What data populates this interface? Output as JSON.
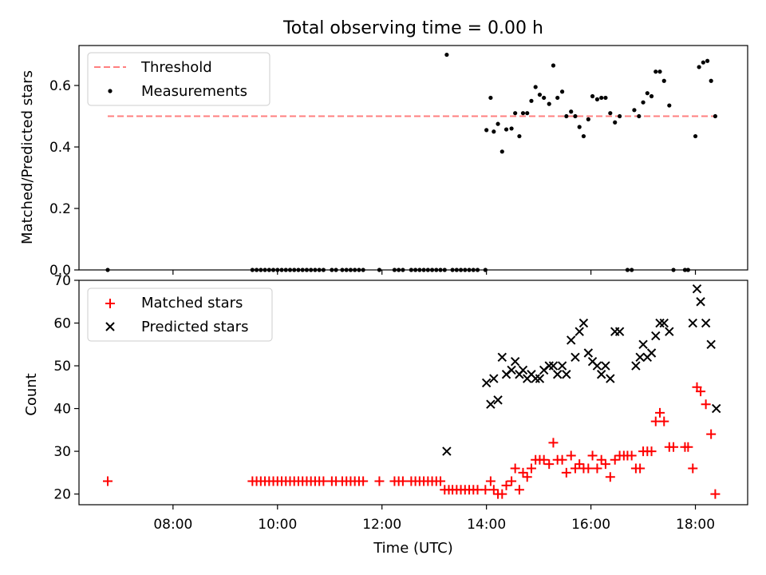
{
  "chart_data": [
    {
      "type": "scatter",
      "title": "Total observing time = 0.00 h",
      "xlabel": "",
      "ylabel": "Matched/Predicted stars",
      "x_unit": "hours (UTC)",
      "xlim": [
        6.2,
        19.0
      ],
      "ylim": [
        0.0,
        0.73
      ],
      "yticks": [
        0.0,
        0.2,
        0.4,
        0.6
      ],
      "ytick_labels": [
        "0.0",
        "0.2",
        "0.4",
        "0.6"
      ],
      "grid": false,
      "legend_position": "upper-left",
      "legend": [
        "Threshold",
        "Measurements"
      ],
      "threshold": {
        "name": "Threshold",
        "x_range": [
          6.75,
          18.4
        ],
        "value": 0.5,
        "color": "#ff7f7f",
        "style": "dashed"
      },
      "series": [
        {
          "name": "Measurements",
          "color": "#000000",
          "marker": "dot",
          "points": [
            [
              6.75,
              0.0
            ],
            [
              9.52,
              0.0
            ],
            [
              9.6,
              0.0
            ],
            [
              9.68,
              0.0
            ],
            [
              9.76,
              0.0
            ],
            [
              9.84,
              0.0
            ],
            [
              9.92,
              0.0
            ],
            [
              10.0,
              0.0
            ],
            [
              10.08,
              0.0
            ],
            [
              10.16,
              0.0
            ],
            [
              10.24,
              0.0
            ],
            [
              10.32,
              0.0
            ],
            [
              10.4,
              0.0
            ],
            [
              10.48,
              0.0
            ],
            [
              10.56,
              0.0
            ],
            [
              10.64,
              0.0
            ],
            [
              10.72,
              0.0
            ],
            [
              10.8,
              0.0
            ],
            [
              10.88,
              0.0
            ],
            [
              11.04,
              0.0
            ],
            [
              11.12,
              0.0
            ],
            [
              11.24,
              0.0
            ],
            [
              11.32,
              0.0
            ],
            [
              11.4,
              0.0
            ],
            [
              11.48,
              0.0
            ],
            [
              11.56,
              0.0
            ],
            [
              11.64,
              0.0
            ],
            [
              11.95,
              0.0
            ],
            [
              12.24,
              0.0
            ],
            [
              12.32,
              0.0
            ],
            [
              12.4,
              0.0
            ],
            [
              12.56,
              0.0
            ],
            [
              12.64,
              0.0
            ],
            [
              12.72,
              0.0
            ],
            [
              12.8,
              0.0
            ],
            [
              12.88,
              0.0
            ],
            [
              12.96,
              0.0
            ],
            [
              13.04,
              0.0
            ],
            [
              13.12,
              0.0
            ],
            [
              13.2,
              0.0
            ],
            [
              13.35,
              0.0
            ],
            [
              13.43,
              0.0
            ],
            [
              13.51,
              0.0
            ],
            [
              13.59,
              0.0
            ],
            [
              13.67,
              0.0
            ],
            [
              13.75,
              0.0
            ],
            [
              13.83,
              0.0
            ],
            [
              13.98,
              0.0
            ],
            [
              13.24,
              0.7
            ],
            [
              14.0,
              0.455
            ],
            [
              14.08,
              0.56
            ],
            [
              14.14,
              0.45
            ],
            [
              14.22,
              0.475
            ],
            [
              14.3,
              0.385
            ],
            [
              14.38,
              0.457
            ],
            [
              14.48,
              0.46
            ],
            [
              14.55,
              0.51
            ],
            [
              14.63,
              0.435
            ],
            [
              14.7,
              0.51
            ],
            [
              14.78,
              0.51
            ],
            [
              14.86,
              0.55
            ],
            [
              14.94,
              0.595
            ],
            [
              15.02,
              0.57
            ],
            [
              15.1,
              0.56
            ],
            [
              15.2,
              0.54
            ],
            [
              15.28,
              0.665
            ],
            [
              15.36,
              0.56
            ],
            [
              15.45,
              0.58
            ],
            [
              15.53,
              0.5
            ],
            [
              15.62,
              0.515
            ],
            [
              15.7,
              0.5
            ],
            [
              15.78,
              0.465
            ],
            [
              15.86,
              0.435
            ],
            [
              15.95,
              0.49
            ],
            [
              16.03,
              0.565
            ],
            [
              16.12,
              0.555
            ],
            [
              16.2,
              0.56
            ],
            [
              16.28,
              0.56
            ],
            [
              16.37,
              0.51
            ],
            [
              16.46,
              0.48
            ],
            [
              16.55,
              0.5
            ],
            [
              16.7,
              0.0
            ],
            [
              16.78,
              0.0
            ],
            [
              16.83,
              0.52
            ],
            [
              16.92,
              0.5
            ],
            [
              17.0,
              0.545
            ],
            [
              17.08,
              0.575
            ],
            [
              17.16,
              0.565
            ],
            [
              17.24,
              0.645
            ],
            [
              17.32,
              0.645
            ],
            [
              17.4,
              0.615
            ],
            [
              17.5,
              0.535
            ],
            [
              17.58,
              0.0
            ],
            [
              17.8,
              0.0
            ],
            [
              17.86,
              0.0
            ],
            [
              18.0,
              0.435
            ],
            [
              18.07,
              0.66
            ],
            [
              18.15,
              0.675
            ],
            [
              18.23,
              0.68
            ],
            [
              18.3,
              0.615
            ],
            [
              18.38,
              0.5
            ]
          ]
        }
      ]
    },
    {
      "type": "scatter",
      "title": "",
      "xlabel": "Time (UTC)",
      "ylabel": "Count",
      "x_unit": "hours (UTC)",
      "xlim": [
        6.2,
        19.0
      ],
      "ylim": [
        17.5,
        70.0
      ],
      "xticks": [
        8,
        10,
        12,
        14,
        16,
        18
      ],
      "xtick_labels": [
        "08:00",
        "10:00",
        "12:00",
        "14:00",
        "16:00",
        "18:00"
      ],
      "yticks": [
        20,
        30,
        40,
        50,
        60,
        70
      ],
      "ytick_labels": [
        "20",
        "30",
        "40",
        "50",
        "60",
        "70"
      ],
      "grid": false,
      "legend_position": "upper-left",
      "legend": [
        "Matched stars",
        "Predicted stars"
      ],
      "series": [
        {
          "name": "Matched stars",
          "color": "#ff0000",
          "marker": "plus",
          "points": [
            [
              6.75,
              23
            ],
            [
              9.52,
              23
            ],
            [
              9.6,
              23
            ],
            [
              9.68,
              23
            ],
            [
              9.76,
              23
            ],
            [
              9.84,
              23
            ],
            [
              9.92,
              23
            ],
            [
              10.0,
              23
            ],
            [
              10.08,
              23
            ],
            [
              10.16,
              23
            ],
            [
              10.24,
              23
            ],
            [
              10.32,
              23
            ],
            [
              10.4,
              23
            ],
            [
              10.48,
              23
            ],
            [
              10.56,
              23
            ],
            [
              10.64,
              23
            ],
            [
              10.72,
              23
            ],
            [
              10.8,
              23
            ],
            [
              10.88,
              23
            ],
            [
              11.04,
              23
            ],
            [
              11.12,
              23
            ],
            [
              11.24,
              23
            ],
            [
              11.32,
              23
            ],
            [
              11.4,
              23
            ],
            [
              11.48,
              23
            ],
            [
              11.56,
              23
            ],
            [
              11.64,
              23
            ],
            [
              11.95,
              23
            ],
            [
              12.24,
              23
            ],
            [
              12.32,
              23
            ],
            [
              12.4,
              23
            ],
            [
              12.56,
              23
            ],
            [
              12.64,
              23
            ],
            [
              12.72,
              23
            ],
            [
              12.8,
              23
            ],
            [
              12.88,
              23
            ],
            [
              12.96,
              23
            ],
            [
              13.04,
              23
            ],
            [
              13.12,
              23
            ],
            [
              13.2,
              21
            ],
            [
              13.28,
              21
            ],
            [
              13.35,
              21
            ],
            [
              13.43,
              21
            ],
            [
              13.51,
              21
            ],
            [
              13.59,
              21
            ],
            [
              13.67,
              21
            ],
            [
              13.75,
              21
            ],
            [
              13.83,
              21
            ],
            [
              13.98,
              21
            ],
            [
              14.08,
              23
            ],
            [
              14.14,
              21
            ],
            [
              14.22,
              20
            ],
            [
              14.3,
              20
            ],
            [
              14.38,
              22
            ],
            [
              14.48,
              23
            ],
            [
              14.55,
              26
            ],
            [
              14.63,
              21
            ],
            [
              14.7,
              25
            ],
            [
              14.78,
              24
            ],
            [
              14.86,
              26
            ],
            [
              14.94,
              28
            ],
            [
              15.02,
              28
            ],
            [
              15.1,
              28
            ],
            [
              15.2,
              27
            ],
            [
              15.28,
              32
            ],
            [
              15.36,
              28
            ],
            [
              15.45,
              28
            ],
            [
              15.53,
              25
            ],
            [
              15.62,
              29
            ],
            [
              15.7,
              26
            ],
            [
              15.78,
              27
            ],
            [
              15.86,
              26
            ],
            [
              15.95,
              26
            ],
            [
              16.03,
              29
            ],
            [
              16.12,
              26
            ],
            [
              16.2,
              28
            ],
            [
              16.28,
              27
            ],
            [
              16.37,
              24
            ],
            [
              16.46,
              28
            ],
            [
              16.55,
              29
            ],
            [
              16.63,
              29
            ],
            [
              16.7,
              29
            ],
            [
              16.78,
              29
            ],
            [
              16.86,
              26
            ],
            [
              16.94,
              26
            ],
            [
              17.0,
              30
            ],
            [
              17.08,
              30
            ],
            [
              17.16,
              30
            ],
            [
              17.24,
              37
            ],
            [
              17.32,
              39
            ],
            [
              17.4,
              37
            ],
            [
              17.5,
              31
            ],
            [
              17.58,
              31
            ],
            [
              17.8,
              31
            ],
            [
              17.86,
              31
            ],
            [
              17.95,
              26
            ],
            [
              18.03,
              45
            ],
            [
              18.1,
              44
            ],
            [
              18.2,
              41
            ],
            [
              18.3,
              34
            ],
            [
              18.38,
              20
            ]
          ]
        },
        {
          "name": "Predicted stars",
          "color": "#000000",
          "marker": "x",
          "points": [
            [
              13.24,
              30
            ],
            [
              14.0,
              46
            ],
            [
              14.08,
              41
            ],
            [
              14.14,
              47
            ],
            [
              14.22,
              42
            ],
            [
              14.3,
              52
            ],
            [
              14.38,
              48
            ],
            [
              14.48,
              49
            ],
            [
              14.55,
              51
            ],
            [
              14.63,
              48
            ],
            [
              14.7,
              49
            ],
            [
              14.78,
              47
            ],
            [
              14.86,
              48
            ],
            [
              14.94,
              47
            ],
            [
              15.02,
              47
            ],
            [
              15.1,
              49
            ],
            [
              15.2,
              50
            ],
            [
              15.28,
              50
            ],
            [
              15.36,
              48
            ],
            [
              15.45,
              50
            ],
            [
              15.53,
              48
            ],
            [
              15.62,
              56
            ],
            [
              15.7,
              52
            ],
            [
              15.78,
              58
            ],
            [
              15.86,
              60
            ],
            [
              15.95,
              53
            ],
            [
              16.03,
              51
            ],
            [
              16.12,
              50
            ],
            [
              16.2,
              48
            ],
            [
              16.28,
              50
            ],
            [
              16.37,
              47
            ],
            [
              16.46,
              58
            ],
            [
              16.55,
              58
            ],
            [
              16.86,
              50
            ],
            [
              16.94,
              52
            ],
            [
              17.0,
              55
            ],
            [
              17.08,
              52
            ],
            [
              17.16,
              53
            ],
            [
              17.24,
              57
            ],
            [
              17.32,
              60
            ],
            [
              17.4,
              60
            ],
            [
              17.5,
              58
            ],
            [
              17.95,
              60
            ],
            [
              18.03,
              68
            ],
            [
              18.1,
              65
            ],
            [
              18.2,
              60
            ],
            [
              18.3,
              55
            ],
            [
              18.4,
              40
            ]
          ]
        }
      ]
    }
  ]
}
